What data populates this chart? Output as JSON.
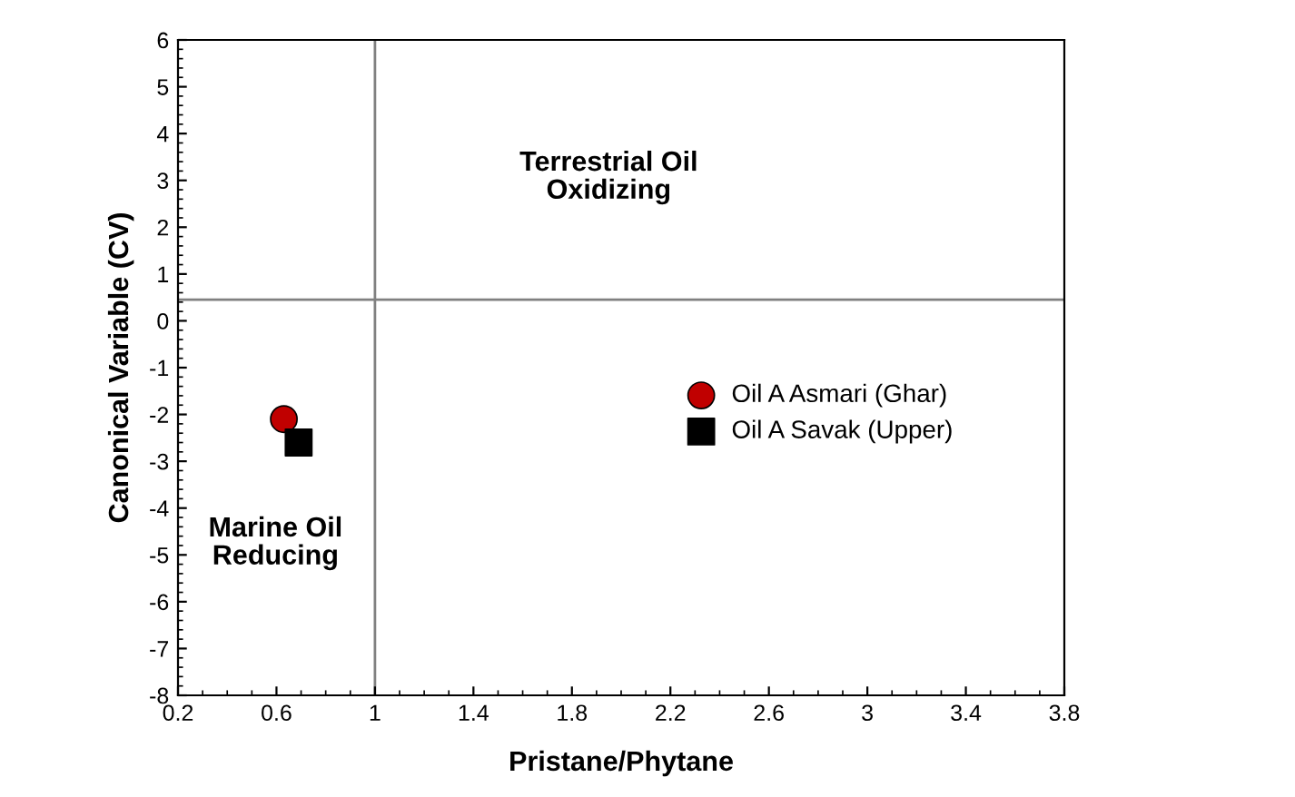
{
  "chart_data": {
    "type": "scatter",
    "xlabel": "Pristane/Phytane",
    "ylabel": "Canonical Variable (CV)",
    "series": [
      {
        "name": "Oil A Asmari (Ghar)",
        "color": "#c00000",
        "marker": "circle",
        "x": [
          0.63
        ],
        "values": [
          -2.1
        ]
      },
      {
        "name": "Oil A Savak (Upper)",
        "color": "#000000",
        "marker": "square",
        "x": [
          0.69
        ],
        "values": [
          -2.6
        ]
      }
    ],
    "xlim": [
      0.2,
      3.8
    ],
    "xticks": [
      0.2,
      0.6,
      1,
      1.4,
      1.8,
      2.2,
      2.6,
      3,
      3.4,
      3.8
    ],
    "ylim": [
      -8,
      6
    ],
    "yticks": [
      -8,
      -7,
      -6,
      -5,
      -4,
      -3,
      -2,
      -1,
      0,
      1,
      2,
      3,
      4,
      5,
      6
    ],
    "ref_lines": [
      {
        "axis": "x",
        "value": 1,
        "color": "#808080"
      },
      {
        "axis": "y",
        "value": 0.45,
        "color": "#808080"
      }
    ],
    "annotations": [
      "Terrestrial Oil\nOxidizing",
      "Marine Oil\nReducing"
    ],
    "grid": false,
    "legend": "right"
  }
}
